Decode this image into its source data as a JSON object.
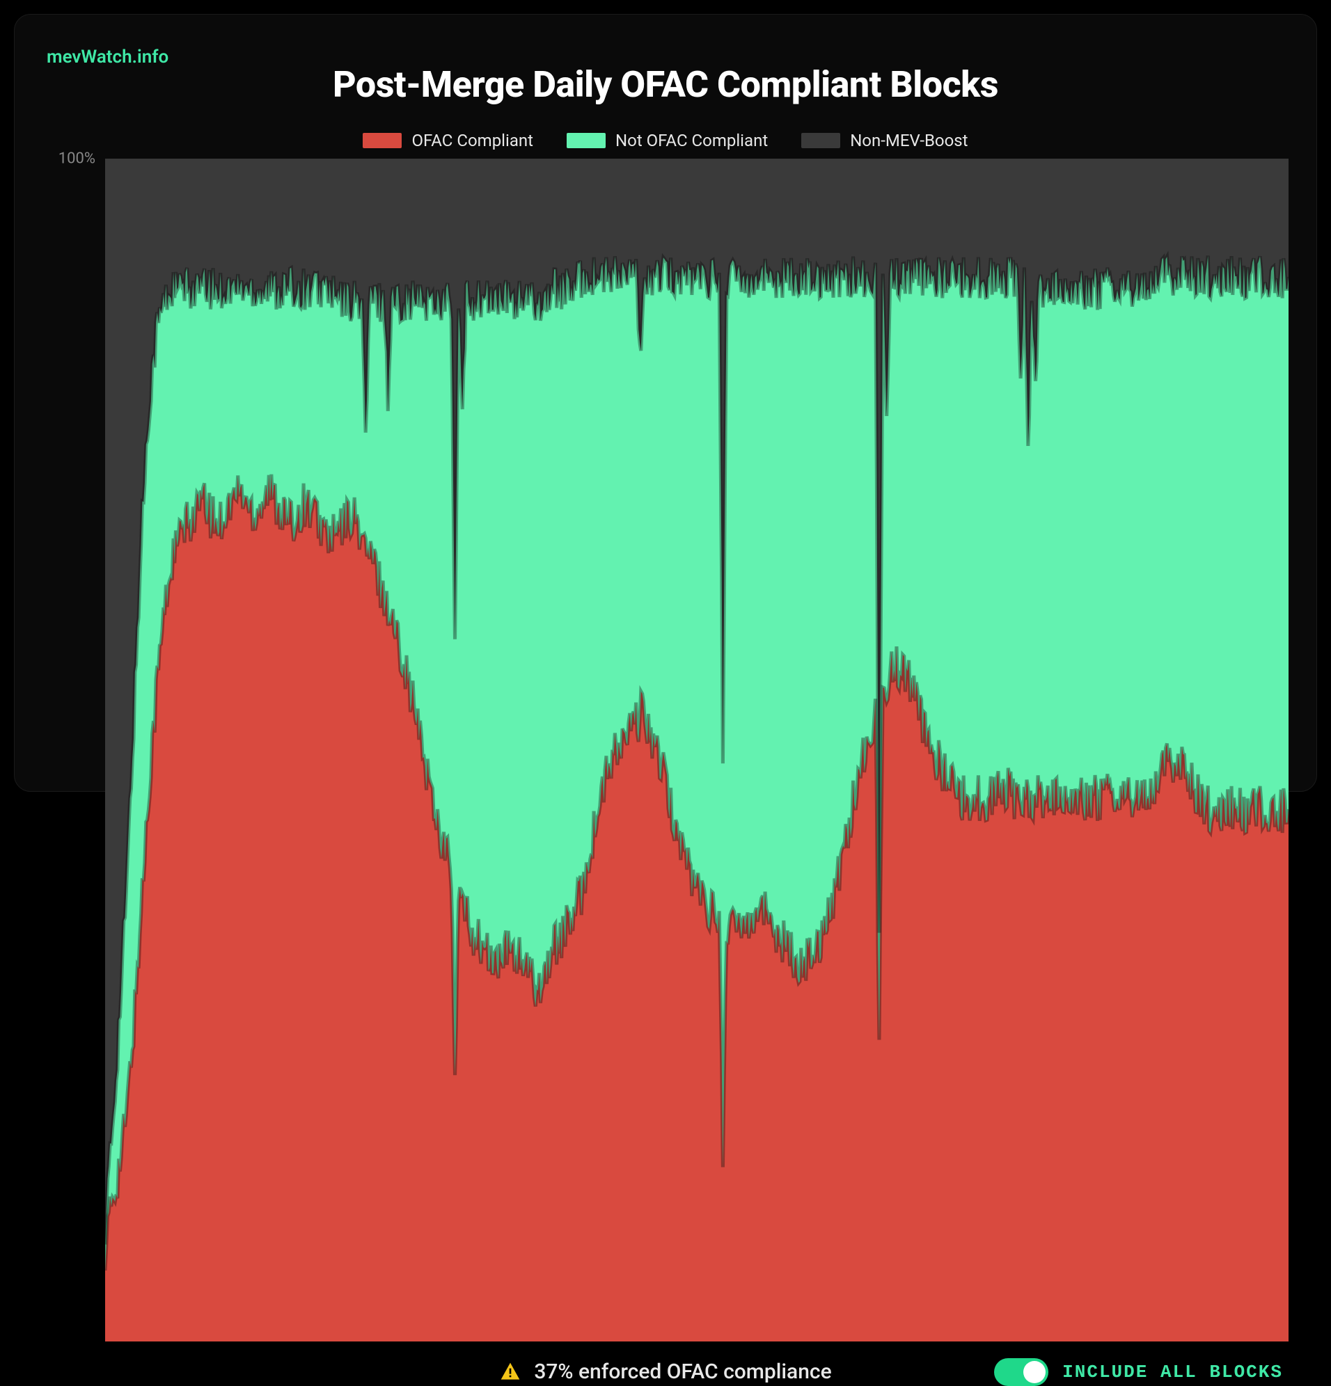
{
  "brand": {
    "text": "mevWatch.info",
    "color": "#3fe8a6"
  },
  "title": "Post-Merge Daily OFAC Compliant Blocks",
  "title_fontsize": 52,
  "legend": {
    "items": [
      {
        "label": "OFAC Compliant",
        "color": "#d94a3f"
      },
      {
        "label": "Not OFAC Compliant",
        "color": "#63f2b0"
      },
      {
        "label": "Non-MEV-Boost",
        "color": "#3a3a3a"
      }
    ],
    "fontsize": 24,
    "text_color": "#e8e8e8"
  },
  "chart": {
    "type": "stacked-area",
    "background_color": "#3a3a3a",
    "ylim": [
      0,
      100
    ],
    "ytick_labels": [
      "100%"
    ],
    "ytick_positions": [
      100
    ],
    "ylabel_color": "#888888",
    "ylabel_fontsize": 22,
    "series": {
      "ofac_compliant": {
        "color": "#d94a3f"
      },
      "not_ofac_compliant": {
        "color": "#63f2b0"
      },
      "non_mev_boost": {
        "color": "#3a3a3a"
      }
    },
    "boundaries": {
      "comment": "Percent-of-height boundaries at ~evenly spaced x positions (0-100). 'red' = top of OFAC-compliant (red) layer from bottom. 'green' = top of green layer (i.e. bottom of grey Non-MEV-Boost layer). Grey fills green..100.",
      "x_count": 160,
      "red": [
        8,
        12,
        15,
        20,
        28,
        38,
        48,
        56,
        62,
        66,
        68,
        69,
        70,
        71,
        70,
        69,
        70,
        71,
        72,
        71,
        70,
        71,
        72,
        71,
        70,
        69,
        70,
        71,
        70,
        69,
        68,
        68,
        69,
        70,
        69,
        67,
        66,
        64,
        62,
        60,
        58,
        55,
        52,
        49,
        46,
        43,
        41,
        39,
        37,
        35,
        34,
        33,
        32,
        32,
        33,
        33,
        32,
        31,
        30,
        31,
        33,
        34,
        35,
        36,
        38,
        41,
        44,
        47,
        49,
        50,
        51,
        52,
        53,
        52,
        50,
        48,
        45,
        43,
        41,
        39,
        38,
        37,
        36,
        36,
        35,
        35,
        36,
        36,
        37,
        36,
        35,
        34,
        33,
        32,
        32,
        33,
        34,
        36,
        38,
        41,
        44,
        47,
        50,
        52,
        54,
        56,
        57,
        57,
        56,
        54,
        52,
        50,
        49,
        48,
        47,
        46,
        46,
        46,
        46,
        46,
        47,
        47,
        46,
        46,
        46,
        46,
        46,
        46,
        46,
        46,
        46,
        46,
        46,
        46,
        46,
        46,
        46,
        46,
        46,
        46,
        46,
        47,
        48,
        49,
        49,
        48,
        47,
        46,
        45,
        45,
        45,
        45,
        45,
        45,
        45,
        45,
        45,
        45,
        45,
        45
      ],
      "green": [
        10,
        18,
        28,
        40,
        55,
        70,
        80,
        86,
        88,
        89,
        89,
        89,
        89,
        89,
        89,
        89,
        89,
        89,
        89,
        89,
        89,
        89,
        89,
        89,
        89,
        89,
        89,
        89,
        89,
        89,
        89,
        88,
        88,
        88,
        88,
        88,
        88,
        88,
        88,
        88,
        88,
        88,
        88,
        88,
        88,
        88,
        88,
        88,
        88,
        88,
        88,
        88,
        88,
        88,
        88,
        88,
        88,
        88,
        88,
        88,
        89,
        89,
        89,
        89,
        90,
        90,
        90,
        90,
        90,
        90,
        90,
        90,
        90,
        90,
        90,
        90,
        90,
        90,
        90,
        90,
        90,
        90,
        90,
        90,
        90,
        90,
        90,
        90,
        90,
        90,
        90,
        90,
        90,
        90,
        90,
        90,
        90,
        90,
        90,
        90,
        90,
        90,
        90,
        90,
        90,
        90,
        90,
        90,
        90,
        90,
        90,
        90,
        90,
        90,
        90,
        90,
        90,
        90,
        90,
        90,
        90,
        90,
        90,
        90,
        90,
        89,
        89,
        89,
        89,
        89,
        89,
        89,
        89,
        89,
        89,
        89,
        89,
        89,
        89,
        89,
        89,
        90,
        90,
        90,
        90,
        90,
        90,
        90,
        90,
        90,
        90,
        90,
        90,
        90,
        90,
        90,
        90,
        90,
        90,
        90
      ],
      "green_dips": [
        {
          "xi": 35,
          "depth": 12
        },
        {
          "xi": 38,
          "depth": 8
        },
        {
          "xi": 47,
          "depth": 30
        },
        {
          "xi": 48,
          "depth": 10
        },
        {
          "xi": 72,
          "depth": 8
        },
        {
          "xi": 83,
          "depth": 40
        },
        {
          "xi": 104,
          "depth": 55
        },
        {
          "xi": 105,
          "depth": 10
        },
        {
          "xi": 123,
          "depth": 8
        },
        {
          "xi": 124,
          "depth": 15
        },
        {
          "xi": 125,
          "depth": 8
        }
      ],
      "red_dips": [
        {
          "xi": 47,
          "depth": 18
        },
        {
          "xi": 83,
          "depth": 20
        },
        {
          "xi": 104,
          "depth": 28
        }
      ]
    }
  },
  "status": {
    "icon": "warning",
    "icon_color": "#f5c518",
    "text": "37% enforced OFAC compliance",
    "text_color": "#e8e8e8",
    "fontsize": 30
  },
  "toggle": {
    "label": "INCLUDE ALL BLOCKS",
    "on": true,
    "on_color": "#1fd88a",
    "knob_color": "#ffffff",
    "label_color": "#3fe8a6",
    "fontsize": 26
  }
}
